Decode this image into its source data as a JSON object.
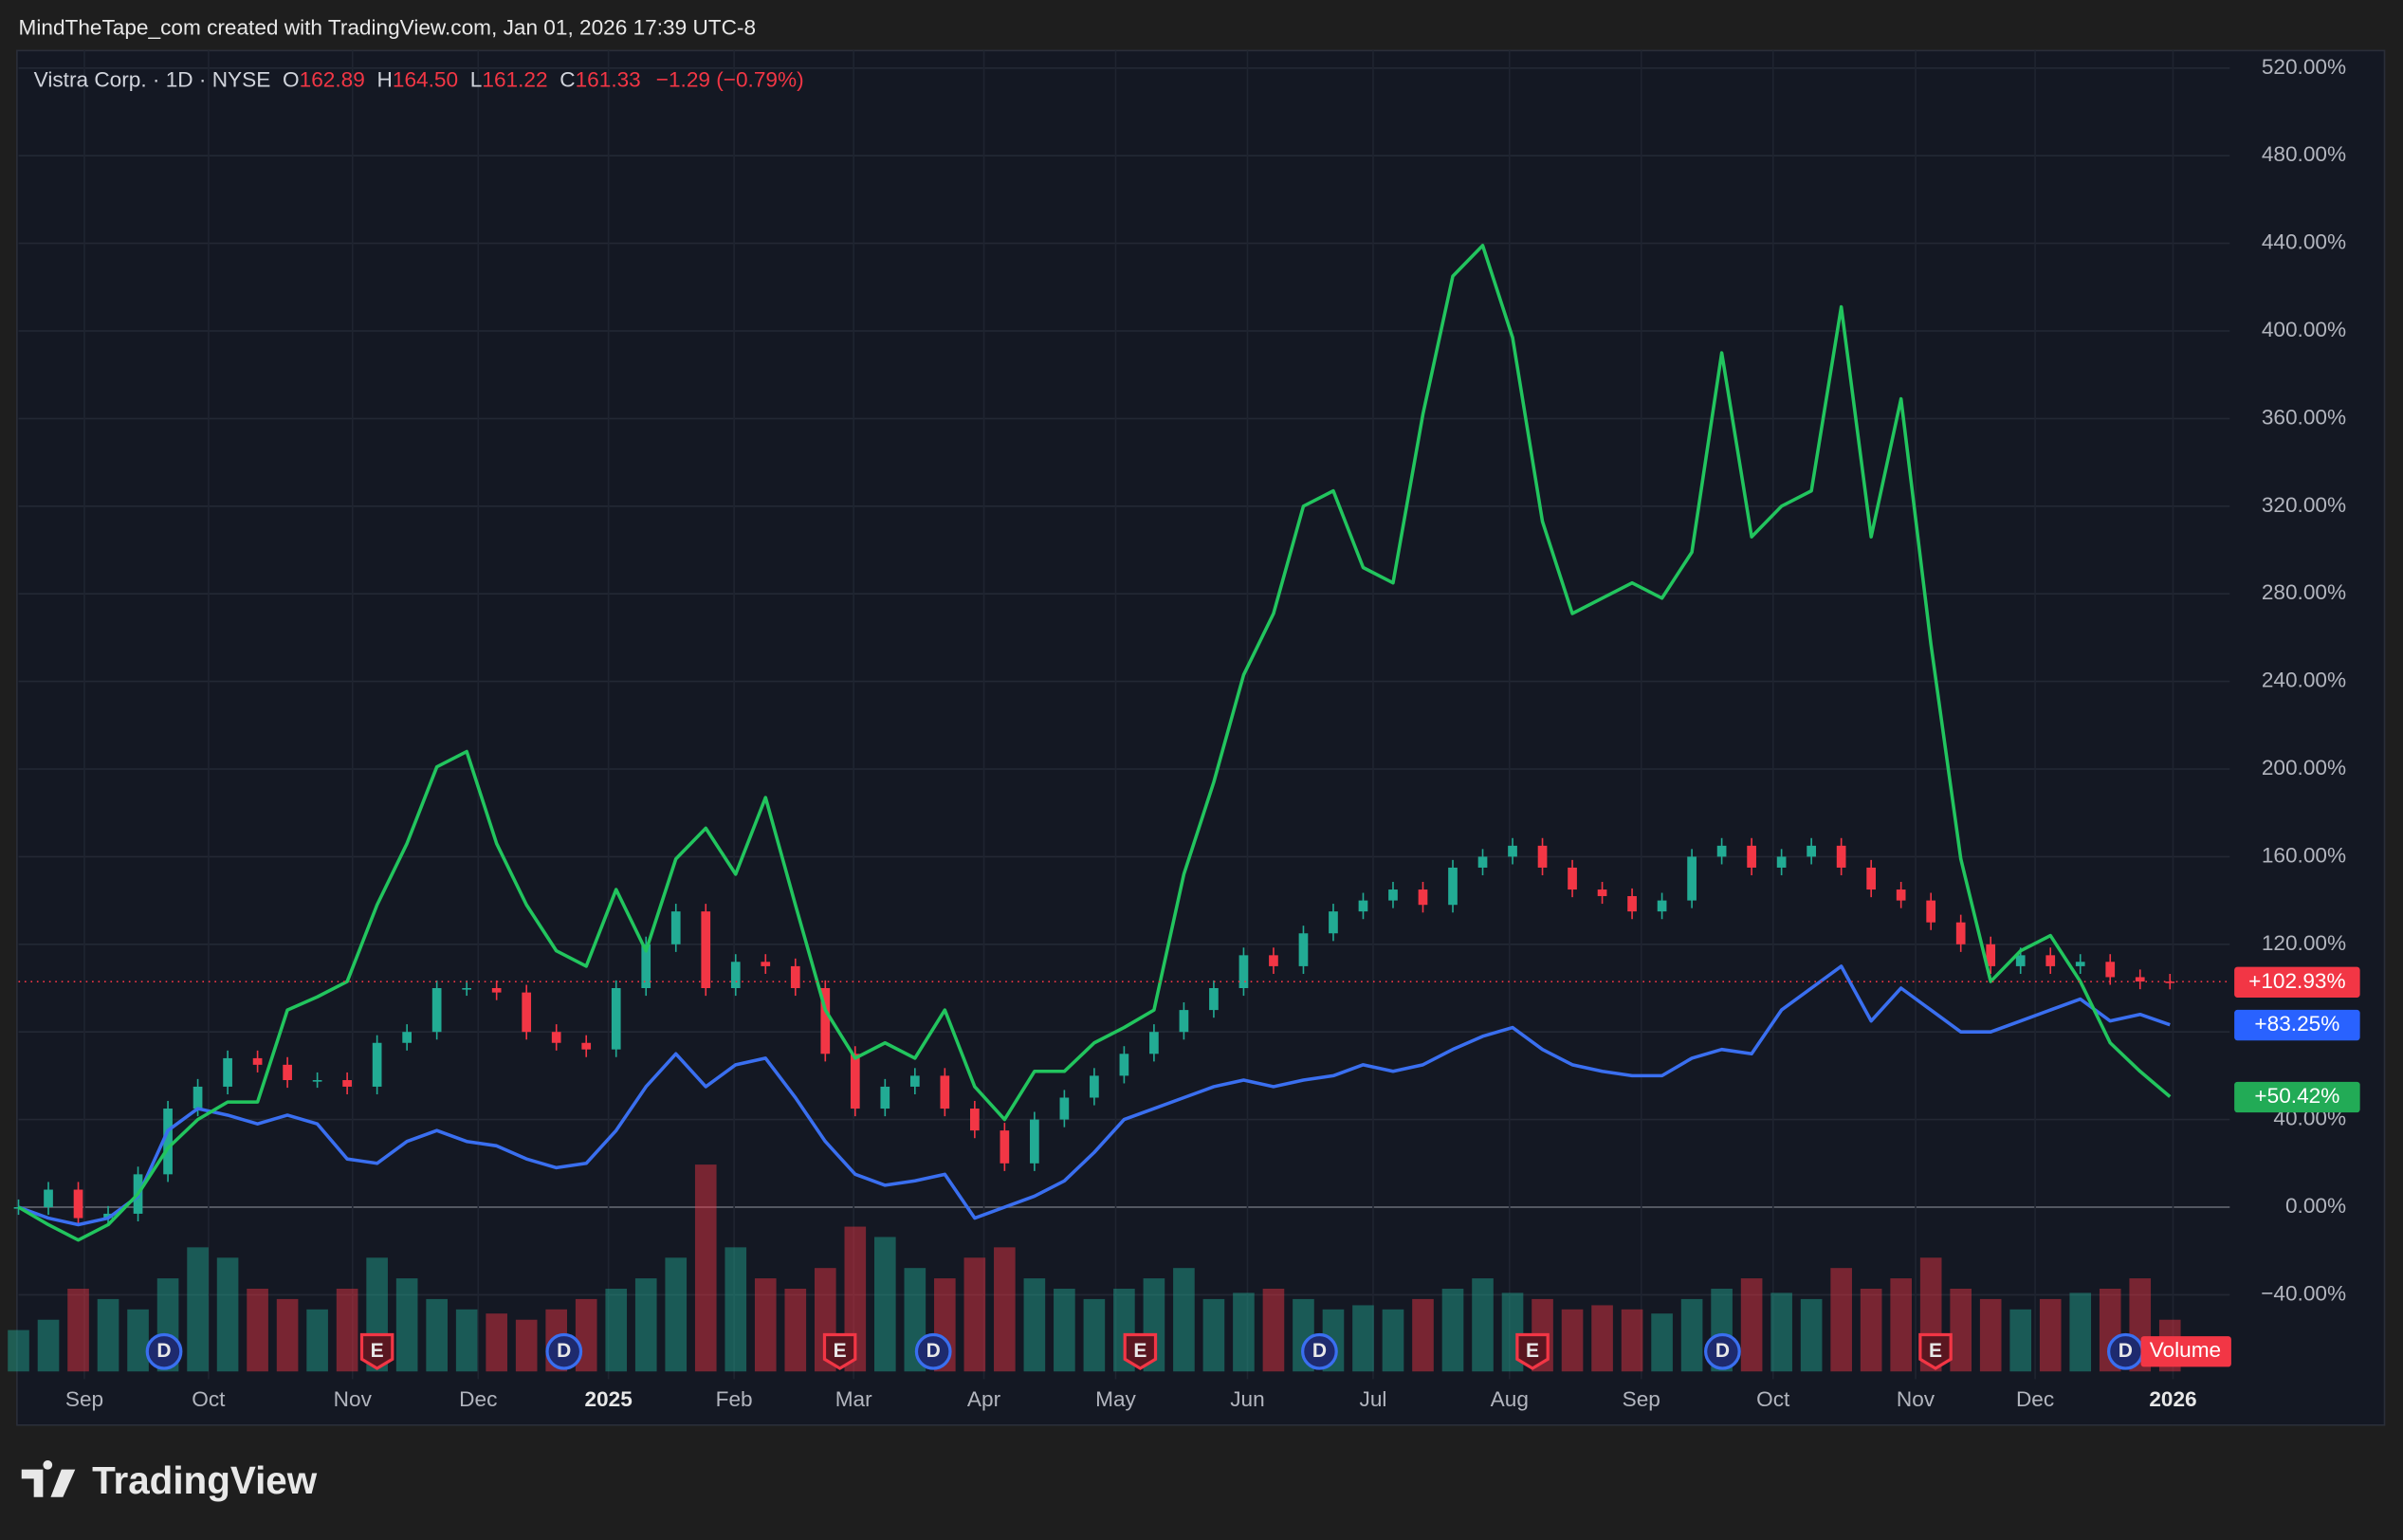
{
  "header": "MindTheTape_com created with TradingView.com, Jan 01, 2026 17:39 UTC-8",
  "footer": {
    "brand": "TradingView"
  },
  "chart_data": {
    "type": "line",
    "legend": {
      "symbol": "Vistra Corp. · 1D · NYSE",
      "o_label": "O",
      "o": "162.89",
      "h_label": "H",
      "h": "164.50",
      "l_label": "L",
      "l": "161.22",
      "c_label": "C",
      "c": "161.33",
      "change": "−1.29 (−0.79%)"
    },
    "x_labels": [
      "Sep",
      "Oct",
      "Nov",
      "Dec",
      "2025",
      "Feb",
      "Mar",
      "Apr",
      "May",
      "Jun",
      "Jul",
      "Aug",
      "Sep",
      "Oct",
      "Nov",
      "Dec",
      "2026"
    ],
    "ylim": [
      -75,
      528
    ],
    "yticks": [
      {
        "value": -40,
        "label": "−40.00%"
      },
      {
        "value": 0,
        "label": "0.00%"
      },
      {
        "value": 40,
        "label": "40.00%"
      },
      {
        "value": 80,
        "label": "80.00%"
      },
      {
        "value": 120,
        "label": "120.00%"
      },
      {
        "value": 160,
        "label": "160.00%"
      },
      {
        "value": 200,
        "label": "200.00%"
      },
      {
        "value": 240,
        "label": "240.00%"
      },
      {
        "value": 280,
        "label": "280.00%"
      },
      {
        "value": 320,
        "label": "320.00%"
      },
      {
        "value": 360,
        "label": "360.00%"
      },
      {
        "value": 400,
        "label": "400.00%"
      },
      {
        "value": 440,
        "label": "440.00%"
      },
      {
        "value": 480,
        "label": "480.00%"
      },
      {
        "value": 520,
        "label": "520.00%"
      }
    ],
    "grid": true,
    "series": [
      {
        "name": "Vistra Corp. · 1D · NYSE",
        "style": "candles",
        "color": "#f23645",
        "up_color": "#22ab94",
        "last_value_label": "+102.93%",
        "values": [
          0,
          8,
          -5,
          -3,
          15,
          45,
          55,
          68,
          65,
          58,
          58,
          55,
          75,
          80,
          100,
          100,
          98,
          80,
          75,
          72,
          100,
          120,
          135,
          100,
          112,
          110,
          100,
          70,
          45,
          55,
          60,
          45,
          35,
          20,
          40,
          50,
          60,
          70,
          80,
          90,
          100,
          115,
          110,
          125,
          135,
          140,
          145,
          138,
          155,
          160,
          165,
          155,
          145,
          142,
          135,
          140,
          160,
          165,
          155,
          160,
          165,
          155,
          145,
          140,
          130,
          120,
          110,
          115,
          110,
          112,
          105,
          103,
          102.93
        ]
      },
      {
        "style": "line",
        "color": "#3a6ff0",
        "last_value_label": "+83.25%",
        "values": [
          0,
          -5,
          -8,
          -5,
          5,
          35,
          45,
          42,
          38,
          42,
          38,
          22,
          20,
          30,
          35,
          30,
          28,
          22,
          18,
          20,
          35,
          55,
          70,
          55,
          65,
          68,
          50,
          30,
          15,
          10,
          12,
          15,
          -5,
          0,
          5,
          12,
          25,
          40,
          45,
          50,
          55,
          58,
          55,
          58,
          60,
          65,
          62,
          65,
          72,
          78,
          82,
          72,
          65,
          62,
          60,
          60,
          68,
          72,
          70,
          90,
          100,
          110,
          85,
          100,
          90,
          80,
          80,
          85,
          90,
          95,
          85,
          88,
          83.25
        ]
      },
      {
        "style": "line",
        "color": "#22c55e",
        "last_value_label": "+50.42%",
        "values": [
          0,
          -8,
          -15,
          -8,
          6,
          27,
          40,
          48,
          48,
          90,
          96,
          103,
          138,
          166,
          201,
          208,
          166,
          138,
          117,
          110,
          145,
          117,
          159,
          173,
          152,
          187,
          138,
          90,
          68,
          75,
          68,
          90,
          55,
          40,
          62,
          62,
          75,
          82,
          90,
          152,
          194,
          243,
          271,
          320,
          327,
          292,
          285,
          362,
          425,
          439,
          397,
          313,
          271,
          278,
          285,
          278,
          299,
          390,
          306,
          320,
          327,
          411,
          306,
          369,
          257,
          159,
          103,
          117,
          124,
          103,
          75,
          62,
          50.42
        ]
      }
    ],
    "volume": {
      "label": "Volume",
      "values": [
        20,
        25,
        40,
        35,
        30,
        45,
        60,
        55,
        40,
        35,
        30,
        40,
        55,
        45,
        35,
        30,
        28,
        25,
        30,
        35,
        40,
        45,
        55,
        100,
        60,
        45,
        40,
        50,
        70,
        65,
        50,
        45,
        55,
        60,
        45,
        40,
        35,
        40,
        45,
        50,
        35,
        38,
        40,
        35,
        30,
        32,
        30,
        35,
        40,
        45,
        38,
        35,
        30,
        32,
        30,
        28,
        35,
        40,
        45,
        38,
        35,
        50,
        40,
        45,
        55,
        40,
        35,
        30,
        35,
        38,
        40,
        45,
        25
      ]
    },
    "events": [
      "D",
      "E",
      "D",
      "E",
      "D",
      "E",
      "D",
      "E",
      "D",
      "E",
      "D"
    ]
  }
}
